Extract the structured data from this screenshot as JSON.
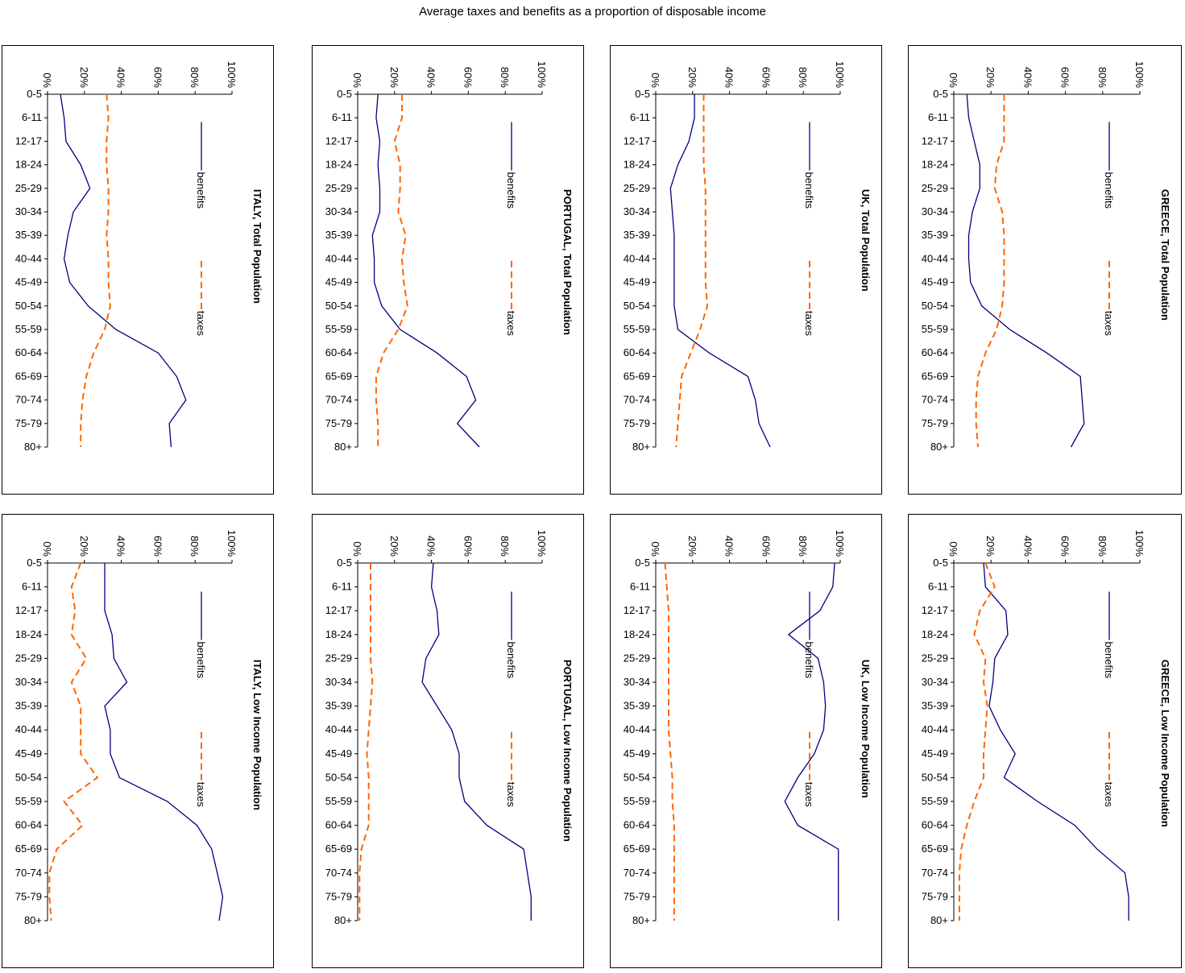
{
  "title": "Average taxes and benefits as a proportion of disposable income",
  "colors": {
    "benefits": "#000080",
    "taxes": "#FF6600",
    "axis": "#000000"
  },
  "chart_data": [
    {
      "type": "line",
      "title": "GREECE, Total Population",
      "categories": [
        "0-5",
        "6-11",
        "12-17",
        "18-24",
        "25-29",
        "30-34",
        "35-39",
        "40-44",
        "45-49",
        "50-54",
        "55-59",
        "60-64",
        "65-69",
        "70-74",
        "75-79",
        "80+"
      ],
      "ylim": [
        0,
        1
      ],
      "yticks": [
        "0%",
        "20%",
        "40%",
        "60%",
        "80%",
        "100%"
      ],
      "series": [
        {
          "name": "benefits",
          "values": [
            0.07,
            0.08,
            0.11,
            0.14,
            0.14,
            0.1,
            0.08,
            0.08,
            0.09,
            0.15,
            0.3,
            0.5,
            0.68,
            0.69,
            0.7,
            0.63
          ]
        },
        {
          "name": "taxes",
          "values": [
            0.27,
            0.27,
            0.27,
            0.23,
            0.22,
            0.26,
            0.27,
            0.27,
            0.27,
            0.26,
            0.23,
            0.17,
            0.13,
            0.12,
            0.12,
            0.13
          ]
        }
      ]
    },
    {
      "type": "line",
      "title": "UK, Total Population",
      "categories": [
        "0-5",
        "6-11",
        "12-17",
        "18-24",
        "25-29",
        "30-34",
        "35-39",
        "40-44",
        "45-49",
        "50-54",
        "55-59",
        "60-64",
        "65-69",
        "70-74",
        "75-79",
        "80+"
      ],
      "ylim": [
        0,
        1
      ],
      "yticks": [
        "0%",
        "20%",
        "40%",
        "60%",
        "80%",
        "100%"
      ],
      "series": [
        {
          "name": "benefits",
          "values": [
            0.21,
            0.21,
            0.18,
            0.12,
            0.08,
            0.09,
            0.1,
            0.1,
            0.1,
            0.1,
            0.12,
            0.29,
            0.5,
            0.54,
            0.56,
            0.62
          ]
        },
        {
          "name": "taxes",
          "values": [
            0.26,
            0.26,
            0.26,
            0.26,
            0.27,
            0.27,
            0.27,
            0.27,
            0.27,
            0.28,
            0.24,
            0.19,
            0.14,
            0.13,
            0.12,
            0.11
          ]
        }
      ]
    },
    {
      "type": "line",
      "title": "PORTUGAL, Total Population",
      "categories": [
        "0-5",
        "6-11",
        "12-17",
        "18-24",
        "25-29",
        "30-34",
        "35-39",
        "40-44",
        "45-49",
        "50-54",
        "55-59",
        "60-64",
        "65-69",
        "70-74",
        "75-79",
        "80+"
      ],
      "ylim": [
        0,
        1
      ],
      "yticks": [
        "0%",
        "20%",
        "40%",
        "60%",
        "80%",
        "100%"
      ],
      "series": [
        {
          "name": "benefits",
          "values": [
            0.11,
            0.1,
            0.12,
            0.11,
            0.12,
            0.12,
            0.08,
            0.09,
            0.09,
            0.13,
            0.23,
            0.43,
            0.59,
            0.64,
            0.54,
            0.66
          ]
        },
        {
          "name": "taxes",
          "values": [
            0.24,
            0.24,
            0.2,
            0.23,
            0.23,
            0.22,
            0.26,
            0.24,
            0.25,
            0.27,
            0.22,
            0.14,
            0.1,
            0.1,
            0.11,
            0.11
          ]
        }
      ]
    },
    {
      "type": "line",
      "title": "ITALY, Total Population",
      "categories": [
        "0-5",
        "6-11",
        "12-17",
        "18-24",
        "25-29",
        "30-34",
        "35-39",
        "40-44",
        "45-49",
        "50-54",
        "55-59",
        "60-64",
        "65-69",
        "70-74",
        "75-79",
        "80+"
      ],
      "ylim": [
        0,
        1
      ],
      "yticks": [
        "0%",
        "20%",
        "40%",
        "60%",
        "80%",
        "100%"
      ],
      "series": [
        {
          "name": "benefits",
          "values": [
            0.07,
            0.09,
            0.1,
            0.18,
            0.23,
            0.14,
            0.11,
            0.09,
            0.12,
            0.22,
            0.37,
            0.6,
            0.7,
            0.75,
            0.66,
            0.67
          ]
        },
        {
          "name": "taxes",
          "values": [
            0.32,
            0.33,
            0.32,
            0.32,
            0.33,
            0.33,
            0.32,
            0.33,
            0.33,
            0.34,
            0.31,
            0.25,
            0.21,
            0.19,
            0.18,
            0.18
          ]
        }
      ]
    },
    {
      "type": "line",
      "title": "GREECE, Low Income Population",
      "categories": [
        "0-5",
        "6-11",
        "12-17",
        "18-24",
        "25-29",
        "30-34",
        "35-39",
        "40-44",
        "45-49",
        "50-54",
        "55-59",
        "60-64",
        "65-69",
        "70-74",
        "75-79",
        "80+"
      ],
      "ylim": [
        0,
        1
      ],
      "yticks": [
        "0%",
        "20%",
        "40%",
        "60%",
        "80%",
        "100%"
      ],
      "series": [
        {
          "name": "benefits",
          "values": [
            0.16,
            0.17,
            0.28,
            0.29,
            0.22,
            0.21,
            0.19,
            0.25,
            0.33,
            0.27,
            0.45,
            0.65,
            0.77,
            0.92,
            0.94,
            0.94
          ]
        },
        {
          "name": "taxes",
          "values": [
            0.17,
            0.22,
            0.14,
            0.11,
            0.17,
            0.16,
            0.18,
            0.17,
            0.16,
            0.16,
            0.11,
            0.07,
            0.04,
            0.03,
            0.03,
            0.03
          ]
        }
      ]
    },
    {
      "type": "line",
      "title": "UK, Low Income Population",
      "categories": [
        "0-5",
        "6-11",
        "12-17",
        "18-24",
        "25-29",
        "30-34",
        "35-39",
        "40-44",
        "45-49",
        "50-54",
        "55-59",
        "60-64",
        "65-69",
        "70-74",
        "75-79",
        "80+"
      ],
      "ylim": [
        0,
        1
      ],
      "yticks": [
        "0%",
        "20%",
        "40%",
        "60%",
        "80%",
        "100%"
      ],
      "series": [
        {
          "name": "benefits",
          "values": [
            0.97,
            0.96,
            0.89,
            0.72,
            0.88,
            0.91,
            0.92,
            0.91,
            0.86,
            0.77,
            0.7,
            0.77,
            0.99,
            0.99,
            0.99,
            0.99
          ]
        },
        {
          "name": "taxes",
          "values": [
            0.05,
            0.06,
            0.07,
            0.07,
            0.07,
            0.07,
            0.07,
            0.07,
            0.08,
            0.09,
            0.09,
            0.1,
            0.1,
            0.1,
            0.1,
            0.1
          ]
        }
      ]
    },
    {
      "type": "line",
      "title": "PORTUGAL, Low Income Population",
      "categories": [
        "0-5",
        "6-11",
        "12-17",
        "18-24",
        "25-29",
        "30-34",
        "35-39",
        "40-44",
        "45-49",
        "50-54",
        "55-59",
        "60-64",
        "65-69",
        "70-74",
        "75-79",
        "80+"
      ],
      "ylim": [
        0,
        1
      ],
      "yticks": [
        "0%",
        "20%",
        "40%",
        "60%",
        "80%",
        "100%"
      ],
      "series": [
        {
          "name": "benefits",
          "values": [
            0.41,
            0.4,
            0.43,
            0.44,
            0.37,
            0.35,
            0.43,
            0.51,
            0.55,
            0.55,
            0.58,
            0.7,
            0.9,
            0.92,
            0.94,
            0.94
          ]
        },
        {
          "name": "taxes",
          "values": [
            0.07,
            0.07,
            0.07,
            0.07,
            0.07,
            0.08,
            0.07,
            0.06,
            0.05,
            0.06,
            0.06,
            0.06,
            0.02,
            0.01,
            0.01,
            0.01
          ]
        }
      ]
    },
    {
      "type": "line",
      "title": "ITALY, Low Income Population",
      "categories": [
        "0-5",
        "6-11",
        "12-17",
        "18-24",
        "25-29",
        "30-34",
        "35-39",
        "40-44",
        "45-49",
        "50-54",
        "55-59",
        "60-64",
        "65-69",
        "70-74",
        "75-79",
        "80+"
      ],
      "ylim": [
        0,
        1
      ],
      "yticks": [
        "0%",
        "20%",
        "40%",
        "60%",
        "80%",
        "100%"
      ],
      "series": [
        {
          "name": "benefits",
          "values": [
            0.31,
            0.31,
            0.31,
            0.35,
            0.36,
            0.43,
            0.31,
            0.34,
            0.34,
            0.39,
            0.65,
            0.81,
            0.89,
            0.92,
            0.95,
            0.93
          ]
        },
        {
          "name": "taxes",
          "values": [
            0.18,
            0.13,
            0.15,
            0.13,
            0.21,
            0.13,
            0.18,
            0.18,
            0.18,
            0.27,
            0.09,
            0.19,
            0.05,
            0.01,
            0.01,
            0.02
          ]
        }
      ]
    }
  ]
}
